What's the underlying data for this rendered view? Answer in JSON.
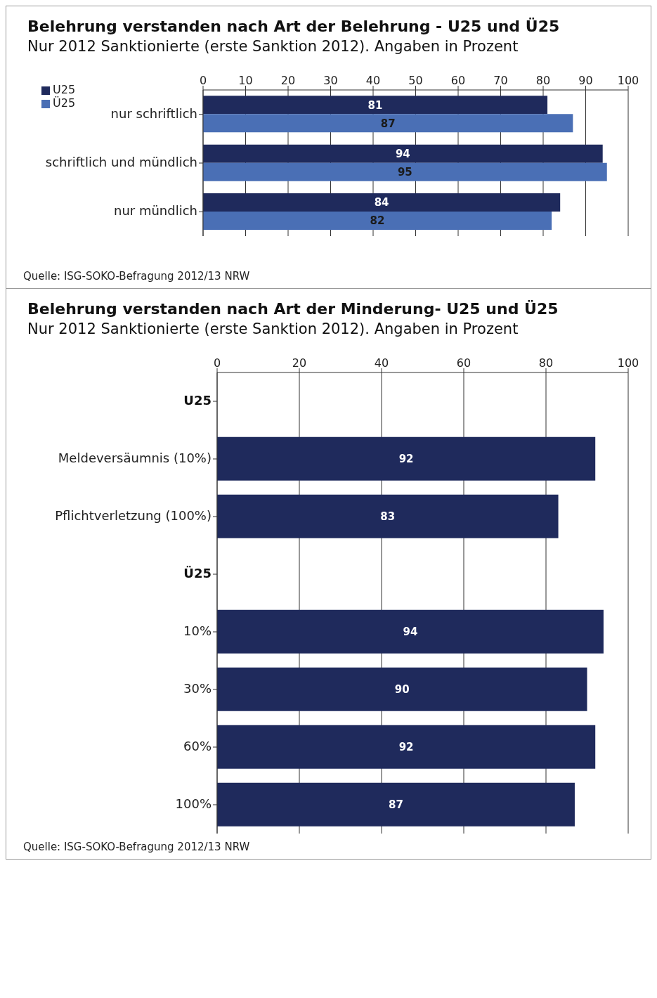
{
  "chart_data": [
    {
      "type": "bar",
      "orientation": "horizontal",
      "title": "Belehrung verstanden nach Art der Belehrung - U25 und Ü25",
      "subtitle": "Nur 2012 Sanktionierte (erste Sanktion 2012). Angaben in Prozent",
      "categories": [
        "nur schriftlich",
        "schriftlich und mündlich",
        "nur mündlich"
      ],
      "series": [
        {
          "name": "U25",
          "color": "#1f2a5c",
          "values": [
            81,
            94,
            84
          ]
        },
        {
          "name": "Ü25",
          "color": "#4a6fb5",
          "values": [
            87,
            95,
            82
          ]
        }
      ],
      "xlim": [
        0,
        100
      ],
      "xticks": [
        0,
        10,
        20,
        30,
        40,
        50,
        60,
        70,
        80,
        90,
        100
      ],
      "grid": "x",
      "legend": "top left",
      "data_labels": true,
      "annotations": [
        "Quelle: ISG-SOKO-Befragung 2012/13 NRW"
      ]
    },
    {
      "type": "bar",
      "orientation": "horizontal",
      "title": "Belehrung verstanden nach Art der Minderung- U25 und Ü25",
      "subtitle": "Nur 2012 Sanktionierte (erste Sanktion 2012). Angaben in Prozent",
      "categories": [
        "U25",
        "Meldeversäumnis (10%)",
        "Pflichtverletzung (100%)",
        "Ü25",
        "10%",
        "30%",
        "60%",
        "100%"
      ],
      "series": [
        {
          "color": "#1f2a5c",
          "values": [
            null,
            92,
            83,
            null,
            94,
            90,
            92,
            87
          ]
        }
      ],
      "xlim": [
        0,
        100
      ],
      "xticks": [
        0,
        20,
        40,
        60,
        80,
        100
      ],
      "grid": "x",
      "data_labels": true,
      "annotations": [
        "Quelle: ISG-SOKO-Befragung 2012/13 NRW"
      ]
    }
  ]
}
